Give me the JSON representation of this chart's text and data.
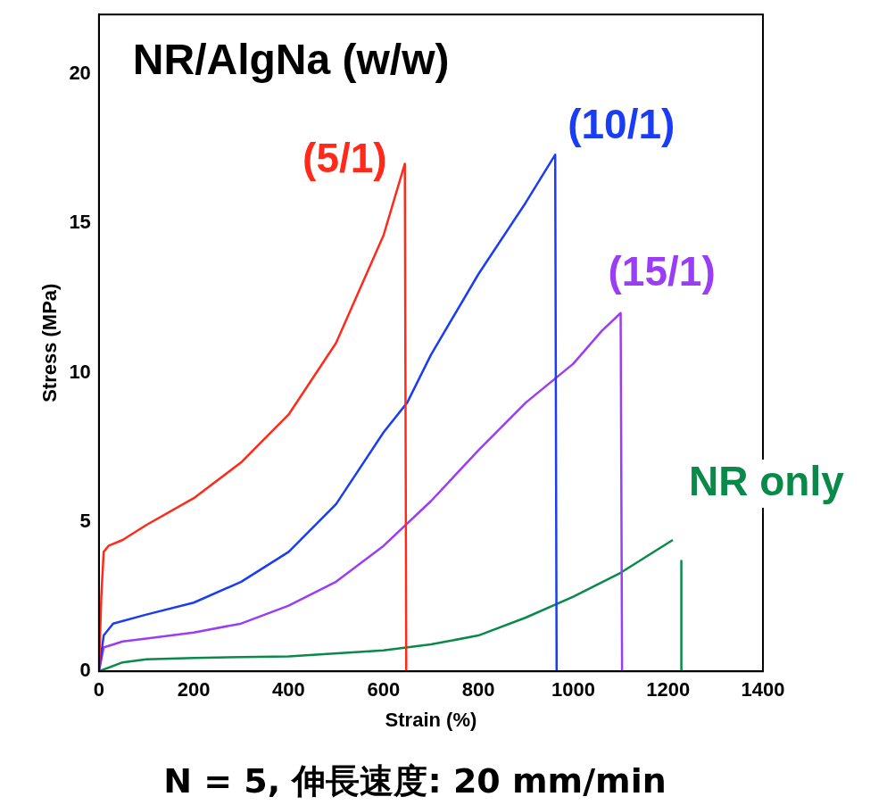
{
  "chart_data": {
    "type": "line",
    "title": "NR/AlgNa (w/w)",
    "xlabel": "Strain (%)",
    "ylabel": "Stress (MPa)",
    "xlim": [
      0,
      1400
    ],
    "xticks": [
      0,
      200,
      400,
      600,
      800,
      1000,
      1200,
      1400
    ],
    "ylim": [
      0,
      22
    ],
    "yticks": [
      0,
      5,
      10,
      15,
      20
    ],
    "grid": false,
    "legend": false,
    "marker": "none",
    "line_style": "solid",
    "annotations": [
      "N = 5, 伸長速度: 20 mm/min"
    ],
    "series": [
      {
        "name": "(5/1)",
        "color": "#ff2a1a",
        "x": [
          0,
          5,
          10,
          20,
          50,
          100,
          200,
          300,
          400,
          500,
          600,
          645,
          648
        ],
        "values": [
          0,
          2.5,
          4.0,
          4.2,
          4.4,
          4.9,
          5.8,
          7.0,
          8.6,
          11.0,
          14.6,
          17.0,
          0
        ]
      },
      {
        "name": "(10/1)",
        "color": "#1a3cf5",
        "x": [
          0,
          10,
          30,
          100,
          200,
          300,
          400,
          500,
          600,
          650,
          700,
          800,
          900,
          962,
          965
        ],
        "values": [
          0,
          1.2,
          1.6,
          1.9,
          2.3,
          3.0,
          4.0,
          5.6,
          8.0,
          9.0,
          10.6,
          13.3,
          15.7,
          17.3,
          0
        ]
      },
      {
        "name": "(15/1)",
        "color": "#9b3df5",
        "x": [
          0,
          10,
          50,
          100,
          200,
          300,
          400,
          500,
          600,
          700,
          800,
          900,
          1000,
          1060,
          1100,
          1103
        ],
        "values": [
          0,
          0.8,
          1.0,
          1.1,
          1.3,
          1.6,
          2.2,
          3.0,
          4.2,
          5.7,
          7.4,
          9.0,
          10.3,
          11.4,
          12.0,
          0
        ]
      },
      {
        "name": "NR only",
        "color": "#0a8a4a",
        "x": [
          0,
          50,
          100,
          200,
          400,
          600,
          700,
          800,
          900,
          1000,
          1100,
          1210
        ],
        "values": [
          0,
          0.3,
          0.4,
          0.45,
          0.5,
          0.7,
          0.9,
          1.2,
          1.8,
          2.5,
          3.3,
          4.4
        ]
      },
      {
        "color": "#0a8a4a",
        "x": [
          1228,
          1228
        ],
        "values": [
          3.7,
          0
        ]
      }
    ]
  }
}
